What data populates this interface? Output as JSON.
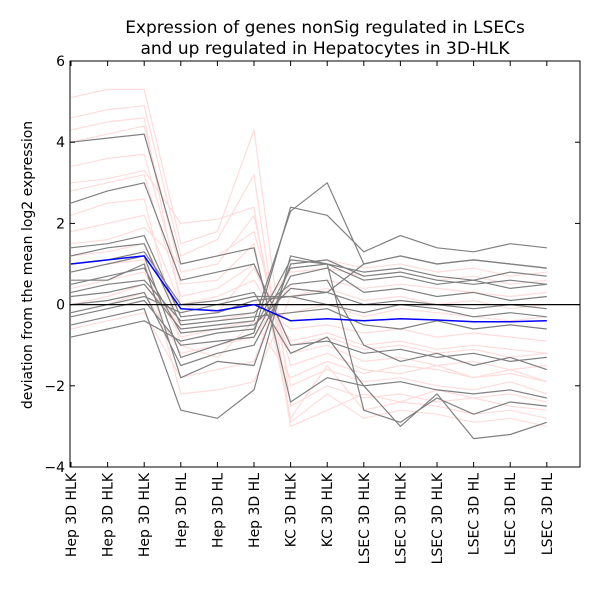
{
  "chart_data": {
    "type": "line",
    "title_lines": [
      "Expression of genes nonSig regulated in LSECs",
      "and up regulated in Hepatocytes in 3D-HLK"
    ],
    "xlabel": "",
    "ylabel": "deviation from the mean log2 expression",
    "ylim": [
      -4,
      6
    ],
    "yticks": [
      -4,
      -2,
      0,
      2,
      4,
      6
    ],
    "categories": [
      "Hep 3D HLK",
      "Hep 3D HLK",
      "Hep 3D HLK",
      "Hep 3D HL",
      "Hep 3D HL",
      "Hep 3D HL",
      "KC 3D HLK",
      "KC 3D HLK",
      "LSEC 3D HLK",
      "LSEC 3D HLK",
      "LSEC 3D HLK",
      "LSEC 3D HL",
      "LSEC 3D HL",
      "LSEC 3D HL"
    ],
    "reference_line": {
      "y": 0,
      "color": "#000000"
    },
    "series": [
      {
        "role": "mean",
        "color": "#0000ff",
        "values": [
          1.0,
          1.1,
          1.2,
          -0.1,
          -0.15,
          0.0,
          -0.4,
          -0.35,
          -0.4,
          -0.35,
          -0.38,
          -0.42,
          -0.42,
          -0.4
        ]
      },
      {
        "group": "pink",
        "color": "#ffdcdc",
        "values": [
          3.4,
          3.6,
          3.7,
          0.5,
          0.6,
          1.5,
          -2.8,
          -1.5,
          -2.6,
          -2.4,
          -2.5,
          -2.7,
          -2.6,
          -2.8
        ]
      },
      {
        "group": "pink",
        "color": "#ffdcdc",
        "values": [
          5.1,
          5.3,
          5.3,
          1.5,
          1.8,
          4.3,
          -2.5,
          -2.0,
          -2.3,
          -2.2,
          -2.4,
          -2.3,
          -2.5,
          -2.6
        ]
      },
      {
        "group": "pink",
        "color": "#ffdcdc",
        "values": [
          4.6,
          4.8,
          4.9,
          1.2,
          1.6,
          3.2,
          -2.9,
          -2.2,
          -2.8,
          -2.6,
          -2.7,
          -2.9,
          -2.8,
          -3.0
        ]
      },
      {
        "group": "pink",
        "color": "#ffdcdc",
        "values": [
          2.8,
          3.0,
          3.2,
          0.2,
          0.4,
          1.0,
          -1.2,
          -1.0,
          -1.4,
          -1.3,
          -1.5,
          -1.4,
          -1.6,
          -1.5
        ]
      },
      {
        "group": "pink",
        "color": "#ffdcdc",
        "values": [
          1.8,
          2.0,
          2.2,
          0.0,
          0.2,
          0.6,
          -0.9,
          -0.7,
          -1.0,
          -0.9,
          -1.1,
          -1.0,
          -1.1,
          -1.2
        ]
      },
      {
        "group": "pink",
        "color": "#ffdcdc",
        "values": [
          4.0,
          4.2,
          4.4,
          0.8,
          1.0,
          2.2,
          -2.0,
          -1.6,
          -1.9,
          -1.8,
          -2.0,
          -2.1,
          -1.9,
          -2.2
        ]
      },
      {
        "group": "pink",
        "color": "#ffdcdc",
        "values": [
          1.2,
          1.3,
          1.5,
          -0.3,
          -0.2,
          0.1,
          -0.6,
          -0.5,
          -0.7,
          -0.6,
          -0.8,
          -0.7,
          -0.8,
          -0.9
        ]
      },
      {
        "group": "pink",
        "color": "#ffdcdc",
        "values": [
          0.4,
          0.6,
          0.8,
          -0.8,
          -0.6,
          -0.4,
          -0.2,
          0.0,
          -0.3,
          -0.1,
          -0.2,
          -0.3,
          -0.4,
          -0.3
        ]
      },
      {
        "group": "pink",
        "color": "#ffdcdc",
        "values": [
          -0.2,
          0.0,
          0.3,
          -1.2,
          -1.0,
          -0.8,
          0.5,
          0.6,
          0.4,
          0.5,
          0.4,
          0.3,
          0.2,
          0.3
        ]
      },
      {
        "group": "pink",
        "color": "#ffdcdc",
        "values": [
          -0.6,
          -0.4,
          -0.2,
          -1.8,
          -1.6,
          -1.4,
          1.0,
          1.1,
          0.9,
          1.0,
          0.8,
          0.9,
          0.7,
          0.8
        ]
      },
      {
        "group": "pink",
        "color": "#ffdcdc",
        "values": [
          3.0,
          3.1,
          3.3,
          2.0,
          2.1,
          2.4,
          -3.0,
          -2.6,
          -2.2,
          -2.4,
          -2.1,
          -2.3,
          -2.2,
          -2.4
        ]
      },
      {
        "group": "pink",
        "color": "#ffdcdc",
        "values": [
          2.2,
          2.5,
          2.6,
          -1.0,
          -1.3,
          -0.4,
          -1.8,
          -1.4,
          -1.7,
          -1.5,
          -1.6,
          -1.8,
          -1.7,
          -1.9
        ]
      },
      {
        "group": "pink",
        "color": "#ffdcdc",
        "values": [
          0.8,
          1.0,
          1.1,
          -2.2,
          -2.1,
          -1.9,
          0.2,
          0.4,
          0.1,
          0.2,
          0.0,
          0.1,
          -0.1,
          0.0
        ]
      },
      {
        "group": "pink",
        "color": "#ffdcdc",
        "values": [
          4.3,
          4.5,
          4.6,
          0.0,
          -0.2,
          0.9,
          -1.0,
          -0.8,
          -1.1,
          -1.0,
          -1.2,
          -1.1,
          -1.3,
          -1.2
        ]
      },
      {
        "group": "pink",
        "color": "#ffdcdc",
        "values": [
          1.5,
          1.6,
          1.9,
          1.0,
          1.2,
          1.8,
          -1.5,
          -1.2,
          -1.6,
          -1.7,
          -1.5,
          -1.8,
          -1.6,
          -1.9
        ]
      },
      {
        "group": "pink",
        "color": "#ffdcdc",
        "values": [
          0.0,
          0.2,
          0.5,
          -0.5,
          -0.4,
          -0.2,
          0.8,
          0.9,
          0.7,
          0.8,
          0.6,
          0.7,
          0.5,
          0.6
        ]
      },
      {
        "group": "gray",
        "color": "#808080",
        "values": [
          0.6,
          0.6,
          1.0,
          -1.8,
          -1.4,
          -1.5,
          1.0,
          1.1,
          0.7,
          0.8,
          0.6,
          0.5,
          0.6,
          0.5
        ]
      },
      {
        "group": "gray",
        "color": "#808080",
        "values": [
          1.4,
          1.5,
          1.7,
          -0.3,
          -0.2,
          0.1,
          0.2,
          0.0,
          -0.2,
          0.0,
          -0.1,
          -0.3,
          -0.2,
          -0.3
        ]
      },
      {
        "group": "gray",
        "color": "#808080",
        "values": [
          4.0,
          4.1,
          4.2,
          1.0,
          1.2,
          1.4,
          -2.4,
          -1.8,
          -2.0,
          -1.9,
          -2.1,
          -2.2,
          -2.1,
          -2.3
        ]
      },
      {
        "group": "gray",
        "color": "#808080",
        "values": [
          2.5,
          2.8,
          3.0,
          0.6,
          0.8,
          1.0,
          -1.0,
          -0.9,
          -1.2,
          -1.1,
          -1.3,
          -1.2,
          -1.4,
          -1.3
        ]
      },
      {
        "group": "gray",
        "color": "#808080",
        "values": [
          0.2,
          0.3,
          0.5,
          -0.6,
          -0.5,
          -0.4,
          2.3,
          3.0,
          1.0,
          1.2,
          1.0,
          1.1,
          1.0,
          0.9
        ]
      },
      {
        "group": "gray",
        "color": "#808080",
        "values": [
          0.8,
          1.0,
          1.2,
          -1.3,
          -1.0,
          -0.7,
          2.4,
          2.2,
          1.3,
          1.7,
          1.4,
          1.3,
          1.5,
          1.4
        ]
      },
      {
        "group": "gray",
        "color": "#808080",
        "values": [
          -0.5,
          -0.3,
          -0.1,
          -2.6,
          -2.8,
          -2.1,
          1.2,
          1.0,
          0.6,
          0.7,
          0.5,
          0.6,
          0.4,
          0.5
        ]
      },
      {
        "group": "gray",
        "color": "#808080",
        "values": [
          0.0,
          0.1,
          0.3,
          -1.5,
          -1.2,
          -1.0,
          0.7,
          0.9,
          0.3,
          0.4,
          0.2,
          0.3,
          0.1,
          0.2
        ]
      },
      {
        "group": "gray",
        "color": "#808080",
        "values": [
          -0.8,
          -0.6,
          -0.4,
          -0.9,
          -0.7,
          -0.6,
          1.1,
          1.0,
          0.8,
          0.9,
          0.7,
          0.6,
          0.8,
          0.7
        ]
      },
      {
        "group": "gray",
        "color": "#808080",
        "values": [
          1.0,
          1.1,
          1.3,
          0.0,
          0.1,
          0.3,
          -1.2,
          -0.8,
          -2.0,
          -3.0,
          -2.2,
          -3.3,
          -3.2,
          -2.9
        ]
      },
      {
        "group": "gray",
        "color": "#808080",
        "values": [
          0.3,
          0.5,
          0.6,
          -0.4,
          -0.3,
          -0.2,
          0.5,
          0.6,
          -1.0,
          -1.4,
          -1.2,
          -1.5,
          -1.3,
          -1.6
        ]
      },
      {
        "group": "gray",
        "color": "#808080",
        "values": [
          -0.3,
          -0.1,
          0.1,
          -1.0,
          -0.9,
          -0.8,
          0.9,
          1.0,
          -2.6,
          -2.9,
          -2.3,
          -2.7,
          -2.4,
          -2.5
        ]
      },
      {
        "group": "gray",
        "color": "#808080",
        "values": [
          0.5,
          0.7,
          0.9,
          -0.7,
          -0.6,
          -0.5,
          0.4,
          0.3,
          0.0,
          0.1,
          0.0,
          -0.1,
          0.0,
          -0.1
        ]
      },
      {
        "group": "gray",
        "color": "#808080",
        "values": [
          1.2,
          1.4,
          1.5,
          -0.5,
          -0.4,
          -0.3,
          -0.2,
          -0.1,
          -0.5,
          -0.6,
          -0.4,
          -0.6,
          -0.5,
          -0.6
        ]
      },
      {
        "group": "gray",
        "color": "#808080",
        "values": [
          -0.2,
          0.0,
          0.2,
          -0.2,
          0.0,
          0.2,
          0.2,
          0.3,
          1.0,
          1.2,
          1.0,
          1.1,
          1.0,
          0.9
        ]
      }
    ]
  }
}
